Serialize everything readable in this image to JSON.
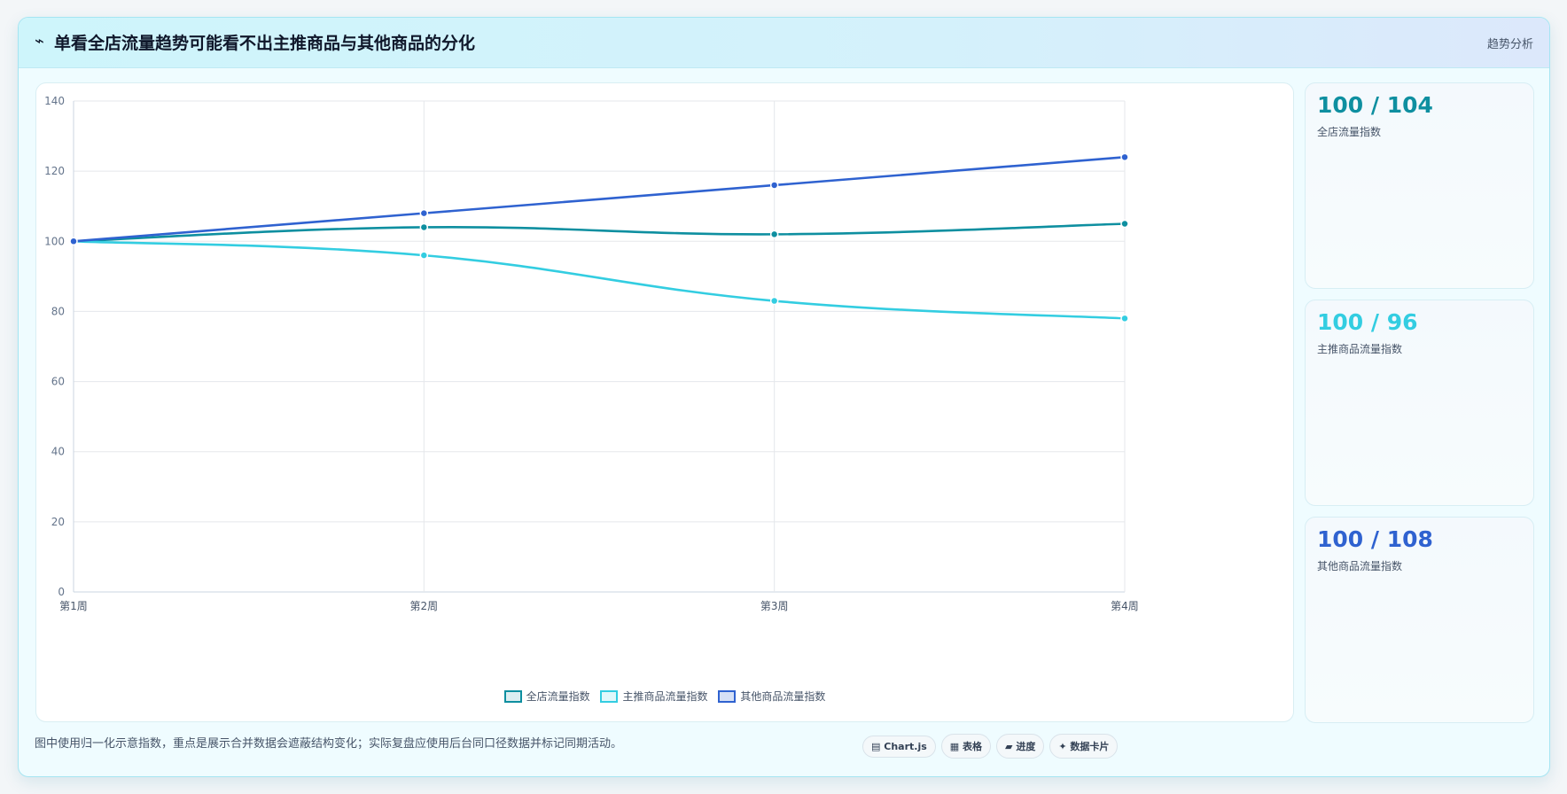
{
  "header": {
    "icon": "⌁",
    "title": "单看全店流量趋势可能看不出主推商品与其他商品的分化",
    "tag": "趋势分析"
  },
  "chart_data": {
    "type": "line",
    "x": [
      "第1周",
      "第2周",
      "第3周",
      "第4周"
    ],
    "series": [
      {
        "name": "全店流量指数",
        "values": [
          100,
          104,
          102,
          105
        ],
        "color": "#0e8fa0"
      },
      {
        "name": "主推商品流量指数",
        "values": [
          100,
          96,
          83,
          78
        ],
        "color": "#33cde1"
      },
      {
        "name": "其他商品流量指数",
        "values": [
          100,
          108,
          116,
          124
        ],
        "color": "#2f62d0"
      }
    ],
    "ylim": [
      0,
      140
    ],
    "yticks": [
      0,
      20,
      40,
      60,
      80,
      100,
      120,
      140
    ],
    "grid": true,
    "legend_position": "bottom"
  },
  "stats": [
    {
      "value": "100 / 104",
      "label": "全店流量指数",
      "color": "#0e8fa0"
    },
    {
      "value": "100 / 96",
      "label": "主推商品流量指数",
      "color": "#33cde1"
    },
    {
      "value": "100 / 108",
      "label": "其他商品流量指数",
      "color": "#2f62d0"
    }
  ],
  "footnote": "图中使用归一化示意指数，重点是展示合并数据会遮蔽结构变化；实际复盘应使用后台同口径数据并标记同期活动。",
  "chips": [
    {
      "icon": "▤",
      "label": "Chart.js"
    },
    {
      "icon": "▦",
      "label": "表格"
    },
    {
      "icon": "▰",
      "label": "进度"
    },
    {
      "icon": "✦",
      "label": "数据卡片"
    }
  ]
}
